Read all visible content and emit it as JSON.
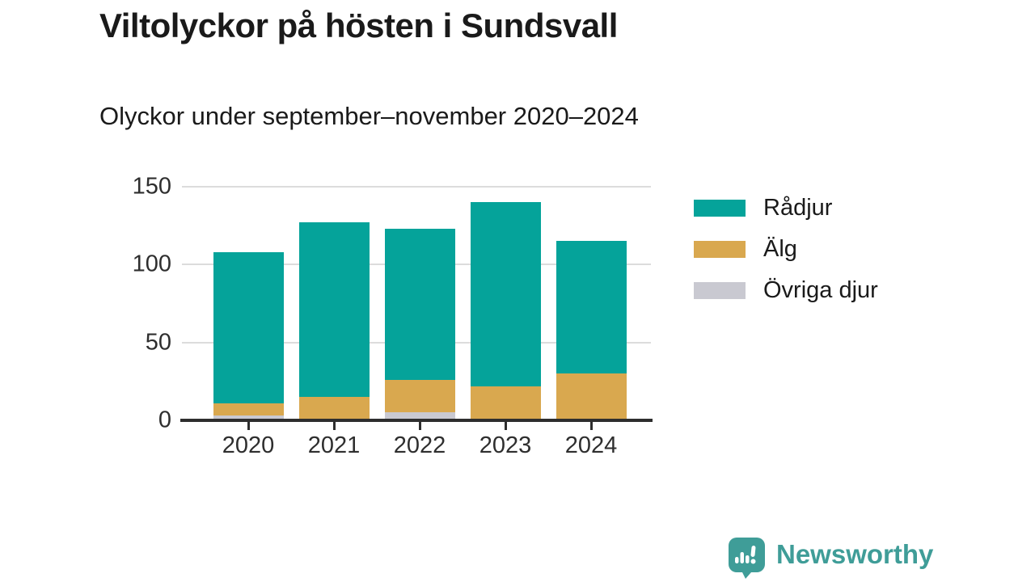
{
  "header": {
    "title": "Viltolyckor på hösten i Sundsvall",
    "subtitle": "Olyckor under september–november 2020–2024"
  },
  "chart_data": {
    "type": "bar",
    "stacked": true,
    "title": "Viltolyckor på hösten i Sundsvall",
    "subtitle": "Olyckor under september–november 2020–2024",
    "categories": [
      "2020",
      "2021",
      "2022",
      "2023",
      "2024"
    ],
    "series": [
      {
        "name": "Rådjur",
        "color": "#05a39a",
        "values": [
          97,
          112,
          97,
          118,
          85
        ]
      },
      {
        "name": "Älg",
        "color": "#d9a84f",
        "values": [
          8,
          14,
          21,
          21,
          29
        ]
      },
      {
        "name": "Övriga djur",
        "color": "#c9c9d1",
        "values": [
          3,
          1,
          5,
          1,
          1
        ]
      }
    ],
    "stack_order_bottom_to_top": [
      "Övriga djur",
      "Älg",
      "Rådjur"
    ],
    "totals": [
      108,
      127,
      123,
      140,
      115
    ],
    "xlabel": "",
    "ylabel": "",
    "ylim": [
      0,
      150
    ],
    "yticks": [
      0,
      50,
      100,
      150
    ],
    "grid": true,
    "legend_position": "right",
    "colors": {
      "grid": "#dcdcdc",
      "axis": "#2e2e2e",
      "text": "#1a1a1a"
    }
  },
  "footer": {
    "brand": "Newsworthy",
    "logo_icon": "newsworthy-speech-bubble-chart-icon",
    "brand_color": "#3f9d98"
  }
}
